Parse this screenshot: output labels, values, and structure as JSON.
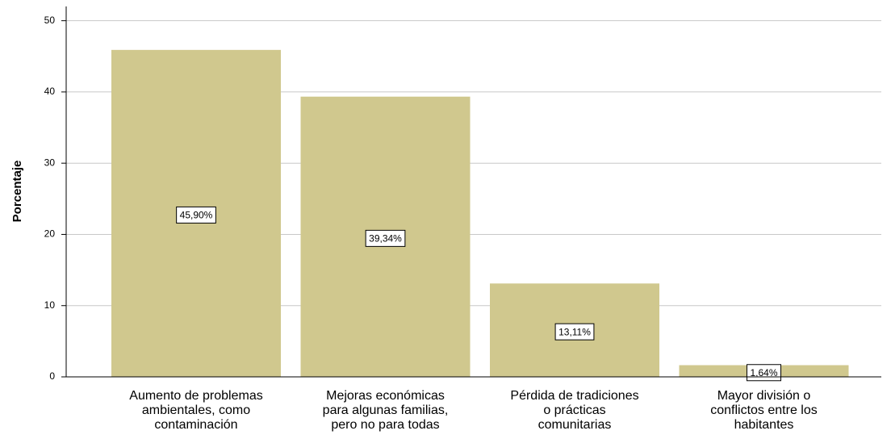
{
  "chart_data": {
    "type": "bar",
    "y_label": "Porcentaje",
    "categories": [
      [
        "Aumento de problemas",
        "ambientales, como",
        "contaminación"
      ],
      [
        "Mejoras económicas",
        "para algunas familias,",
        "pero no para todas"
      ],
      [
        "Pérdida de tradiciones",
        "o prácticas",
        "comunitarias"
      ],
      [
        "Mayor división o",
        "conflictos entre los",
        "habitantes"
      ]
    ],
    "values": [
      45.9,
      39.34,
      13.11,
      1.64
    ],
    "value_labels": [
      "45,90%",
      "39,34%",
      "13,11%",
      "1,64%"
    ],
    "color": "#d0c88e",
    "ylim": [
      0,
      52
    ],
    "yticks": [
      0,
      10,
      20,
      30,
      40,
      50
    ],
    "grid": true
  }
}
